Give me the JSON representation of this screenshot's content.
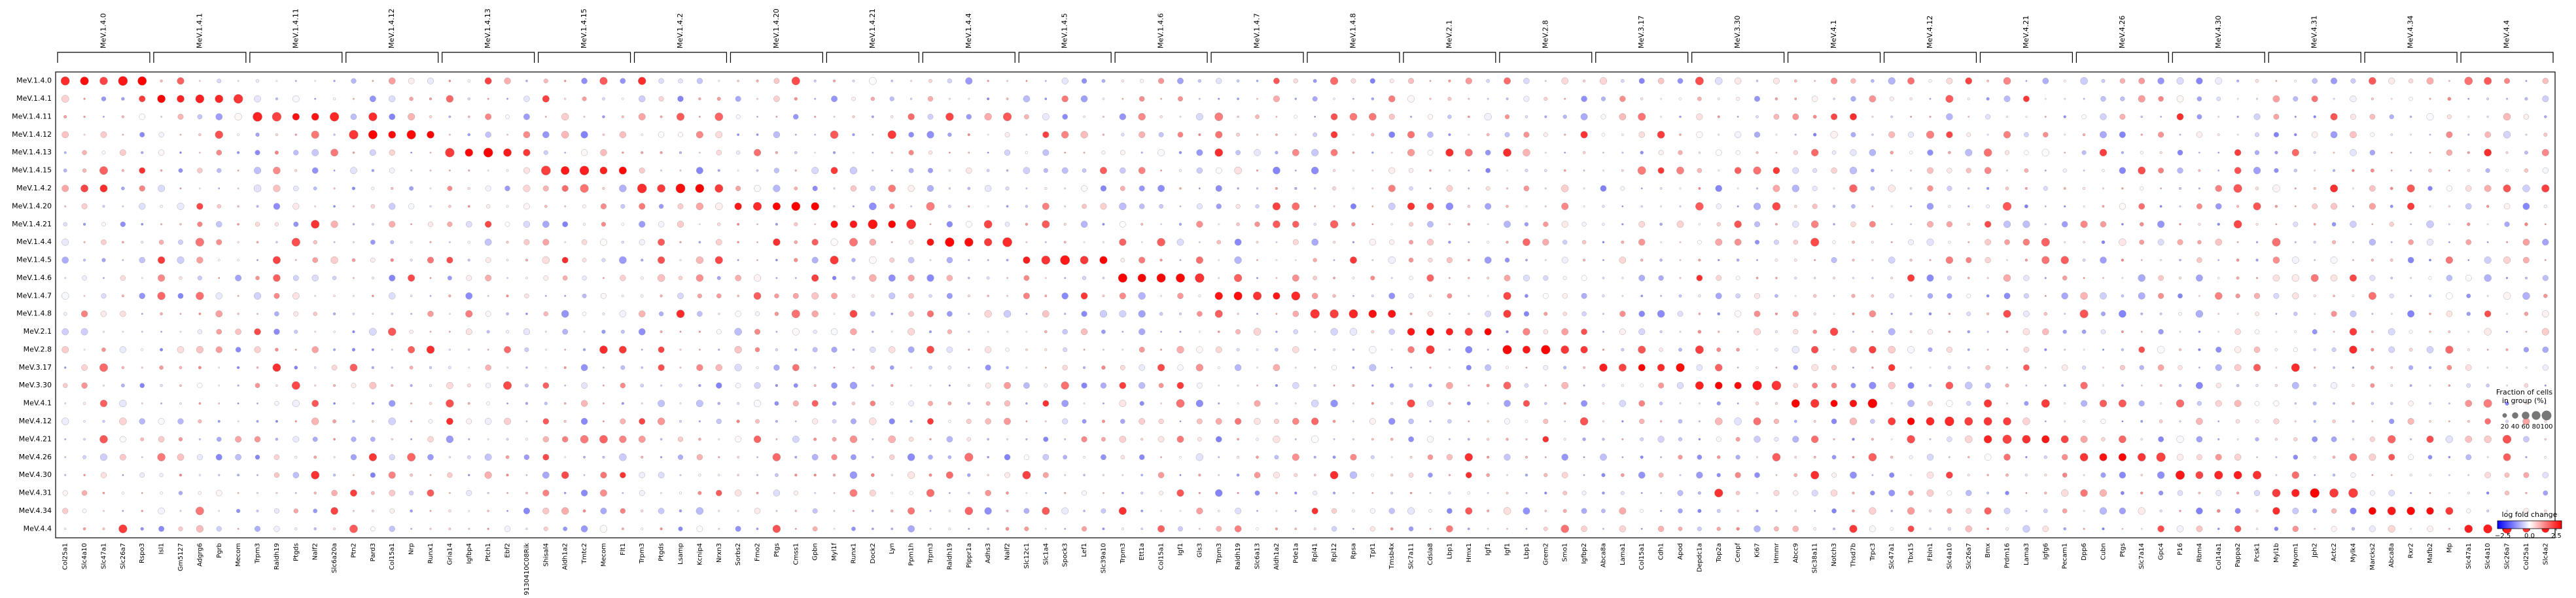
{
  "chart_data": {
    "type": "dotplot",
    "rows": [
      "MeV.1.4.0",
      "MeV.1.4.1",
      "MeV.1.4.11",
      "MeV.1.4.12",
      "MeV.1.4.13",
      "MeV.1.4.15",
      "MeV.1.4.2",
      "MeV.1.4.20",
      "MeV.1.4.21",
      "MeV.1.4.4",
      "MeV.1.4.5",
      "MeV.1.4.6",
      "MeV.1.4.7",
      "MeV.1.4.8",
      "MeV.2.1",
      "MeV.2.8",
      "MeV.3.17",
      "MeV.3.30",
      "MeV.4.1",
      "MeV.4.12",
      "MeV.4.21",
      "MeV.4.26",
      "MeV.4.30",
      "MeV.4.31",
      "MeV.4.34",
      "MeV.4.4"
    ],
    "groups": [
      {
        "label": "MeV.1.4.0",
        "genes": [
          "Col25a1",
          "Slc4a10",
          "Slc47a1",
          "Slc26a7",
          "Rspo3"
        ]
      },
      {
        "label": "MeV.1.4.1",
        "genes": [
          "Isl1",
          "Gm5127",
          "Adgrg6",
          "Pgrb",
          "Mecom"
        ]
      },
      {
        "label": "MeV.1.4.11",
        "genes": [
          "Trpm3",
          "Raldh19",
          "Ptgds",
          "Nalf2",
          "Slc6a20a"
        ]
      },
      {
        "label": "MeV.1.4.12",
        "genes": [
          "Ptn2",
          "Pard3",
          "Col15a1",
          "Nrp",
          "Runx1"
        ]
      },
      {
        "label": "MeV.1.4.13",
        "genes": [
          "Gria14",
          "Igfbp4",
          "Ptch1",
          "Ebf2",
          "9130410C08Rik"
        ]
      },
      {
        "label": "MeV.1.4.15",
        "genes": [
          "Shisal4",
          "Aldh1a2",
          "Tmtc2",
          "Mecom",
          "Flt1"
        ]
      },
      {
        "label": "MeV.1.4.2",
        "genes": [
          "Trpm3",
          "Ptgds",
          "Lsamp",
          "Kcnip4",
          "Nrxn3"
        ]
      },
      {
        "label": "MeV.1.4.20",
        "genes": [
          "Sorbs2",
          "Fmo2",
          "Ptgs",
          "Cmss1",
          "Gpbn"
        ]
      },
      {
        "label": "MeV.1.4.21",
        "genes": [
          "Myl1f",
          "Runx1",
          "Dock2",
          "Lyn",
          "Ppm1h"
        ]
      },
      {
        "label": "MeV.1.4.4",
        "genes": [
          "Trpm3",
          "Raldh19",
          "Plppr1a",
          "Adhs3",
          "Nalf2"
        ]
      },
      {
        "label": "MeV.1.4.5",
        "genes": [
          "Slc12c1",
          "Slc1a4",
          "Spock3",
          "Lef1",
          "Slc39a10"
        ]
      },
      {
        "label": "MeV.1.4.6",
        "genes": [
          "Trpm3",
          "Ett1a",
          "Col15a1",
          "Igf1",
          "Gls3"
        ]
      },
      {
        "label": "MeV.1.4.7",
        "genes": [
          "Trpm3",
          "Raldh19",
          "Slc6a13",
          "Aldh1a2",
          "Pde1a"
        ]
      },
      {
        "label": "MeV.1.4.8",
        "genes": [
          "Rpl41",
          "Rpl12",
          "Rpsa",
          "Tpt1",
          "Tmsb4x"
        ]
      },
      {
        "label": "MeV.2.1",
        "genes": [
          "Slc7a11",
          "Cdsla8",
          "Lbp1",
          "Hmx1",
          "Igf1"
        ]
      },
      {
        "label": "MeV.2.8",
        "genes": [
          "Igf1",
          "Lbp1",
          "Grem2",
          "Smo1",
          "Igfbp2"
        ]
      },
      {
        "label": "MeV.3.17",
        "genes": [
          "Abca8a",
          "Lama1",
          "Col15a1",
          "Cdh1",
          "Apod"
        ]
      },
      {
        "label": "MeV.3.30",
        "genes": [
          "Depdc1a",
          "Top2a",
          "Cenpf",
          "Ki67",
          "Hmmr"
        ]
      },
      {
        "label": "MeV.4.1",
        "genes": [
          "Abcc9",
          "Slc38a11",
          "Notch3",
          "Thsd7b",
          "Trpc3"
        ]
      },
      {
        "label": "MeV.4.12",
        "genes": [
          "Slc47a1",
          "Tbx15",
          "Fbln1",
          "Slc4a10",
          "Slc26a7"
        ]
      },
      {
        "label": "MeV.4.21",
        "genes": [
          "Bmx",
          "Prdm16",
          "Lama3",
          "Igfg6",
          "Pecam1"
        ]
      },
      {
        "label": "MeV.4.26",
        "genes": [
          "Dpp6",
          "Cubn",
          "Ptgs",
          "Slc7a14",
          "Gpc4"
        ]
      },
      {
        "label": "MeV.4.30",
        "genes": [
          "P16",
          "Rbm4",
          "Col14a1",
          "Pappa2",
          "Pcsk1"
        ]
      },
      {
        "label": "MeV.4.31",
        "genes": [
          "Myl1b",
          "Myom1",
          "Jph2",
          "Actc2",
          "Mylk4"
        ]
      },
      {
        "label": "MeV.4.34",
        "genes": [
          "Marcks2",
          "Abca8a",
          "Rxr2",
          "Mafb2",
          "Mp"
        ]
      },
      {
        "label": "MeV.4.4",
        "genes": [
          "Slc47a1",
          "Slc4a10",
          "Slc26a7",
          "Col25a1",
          "Slc4a2"
        ]
      }
    ],
    "size_legend": {
      "title_lines": [
        "Fraction of cells",
        "in group (%)"
      ],
      "ticks": [
        "20",
        "40",
        "60",
        "80",
        "100"
      ]
    },
    "color_legend": {
      "title": "log fold change",
      "ticks": [
        "−2.5",
        "0.0",
        "2.5"
      ],
      "min": -3,
      "max": 3
    },
    "colors": {
      "negative": "#0000ff",
      "neutral": "#ffffff",
      "positive": "#ff0000",
      "grid": "#e8e8e8"
    },
    "notes_encoding": "each row's marker group is strongly red (high fraction); other groups mixed light red/blue"
  }
}
